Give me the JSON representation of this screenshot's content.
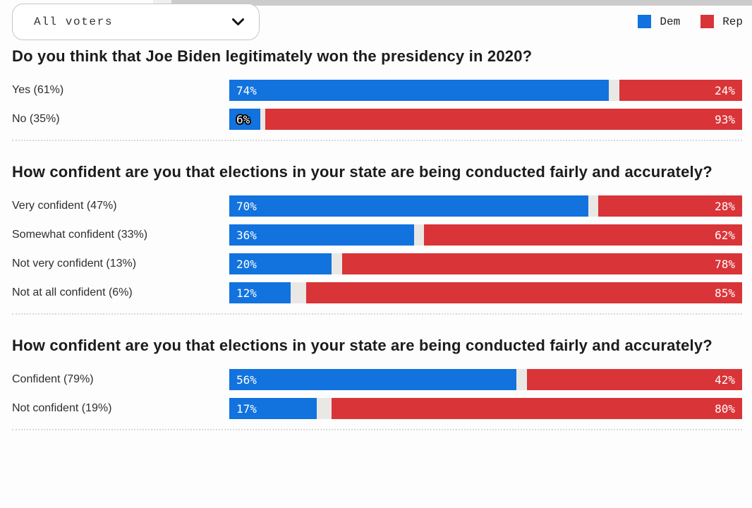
{
  "colors": {
    "dem": "#1272de",
    "rep": "#d93438",
    "track_gap": "#eae8e5",
    "divider": "#d9d9d9",
    "top_strip": "#cbcbcb"
  },
  "header": {
    "filter_value": "All voters",
    "legend": [
      {
        "label": "Dem",
        "color": "#1272de"
      },
      {
        "label": "Rep",
        "color": "#d93438"
      }
    ]
  },
  "icons": {
    "dropdown_chevron": "chevron-down"
  },
  "chart_data": [
    {
      "type": "bar",
      "orientation": "horizontal",
      "title": "Do you think that Joe Biden legitimately won the presidency in 2020?",
      "categories": [
        "Yes (61%)",
        "No (35%)"
      ],
      "series": [
        {
          "name": "Dem",
          "color": "#1272de",
          "values": [
            74,
            6
          ]
        },
        {
          "name": "Rep",
          "color": "#d93438",
          "values": [
            24,
            93
          ]
        }
      ],
      "xlim": [
        0,
        100
      ],
      "legend_position": "top-right",
      "grid": false,
      "rows": [
        {
          "label": "Yes (61%)",
          "dem": 74,
          "rep": 24,
          "dem_text": "74%",
          "rep_text": "24%",
          "dem_outlined": false
        },
        {
          "label": "No (35%)",
          "dem": 6,
          "rep": 93,
          "dem_text": "6%",
          "rep_text": "93%",
          "dem_outlined": true
        }
      ]
    },
    {
      "type": "bar",
      "orientation": "horizontal",
      "title": "How confident are you that elections in your state are being conducted fairly and accurately?",
      "categories": [
        "Very confident (47%)",
        "Somewhat confident (33%)",
        "Not very confident (13%)",
        "Not at all confident (6%)"
      ],
      "series": [
        {
          "name": "Dem",
          "color": "#1272de",
          "values": [
            70,
            36,
            20,
            12
          ]
        },
        {
          "name": "Rep",
          "color": "#d93438",
          "values": [
            28,
            62,
            78,
            85
          ]
        }
      ],
      "xlim": [
        0,
        100
      ],
      "legend_position": "top-right",
      "grid": false,
      "rows": [
        {
          "label": "Very confident (47%)",
          "dem": 70,
          "rep": 28,
          "dem_text": "70%",
          "rep_text": "28%",
          "dem_outlined": false
        },
        {
          "label": "Somewhat confident (33%)",
          "dem": 36,
          "rep": 62,
          "dem_text": "36%",
          "rep_text": "62%",
          "dem_outlined": false
        },
        {
          "label": "Not very confident (13%)",
          "dem": 20,
          "rep": 78,
          "dem_text": "20%",
          "rep_text": "78%",
          "dem_outlined": false
        },
        {
          "label": "Not at all confident (6%)",
          "dem": 12,
          "rep": 85,
          "dem_text": "12%",
          "rep_text": "85%",
          "dem_outlined": false
        }
      ]
    },
    {
      "type": "bar",
      "orientation": "horizontal",
      "title": "How confident are you that elections in your state are being conducted fairly and accurately?",
      "categories": [
        "Confident (79%)",
        "Not confident (19%)"
      ],
      "series": [
        {
          "name": "Dem",
          "color": "#1272de",
          "values": [
            56,
            17
          ]
        },
        {
          "name": "Rep",
          "color": "#d93438",
          "values": [
            42,
            80
          ]
        }
      ],
      "xlim": [
        0,
        100
      ],
      "legend_position": "top-right",
      "grid": false,
      "rows": [
        {
          "label": "Confident (79%)",
          "dem": 56,
          "rep": 42,
          "dem_text": "56%",
          "rep_text": "42%",
          "dem_outlined": false
        },
        {
          "label": "Not confident (19%)",
          "dem": 17,
          "rep": 80,
          "dem_text": "17%",
          "rep_text": "80%",
          "dem_outlined": false
        }
      ]
    }
  ]
}
